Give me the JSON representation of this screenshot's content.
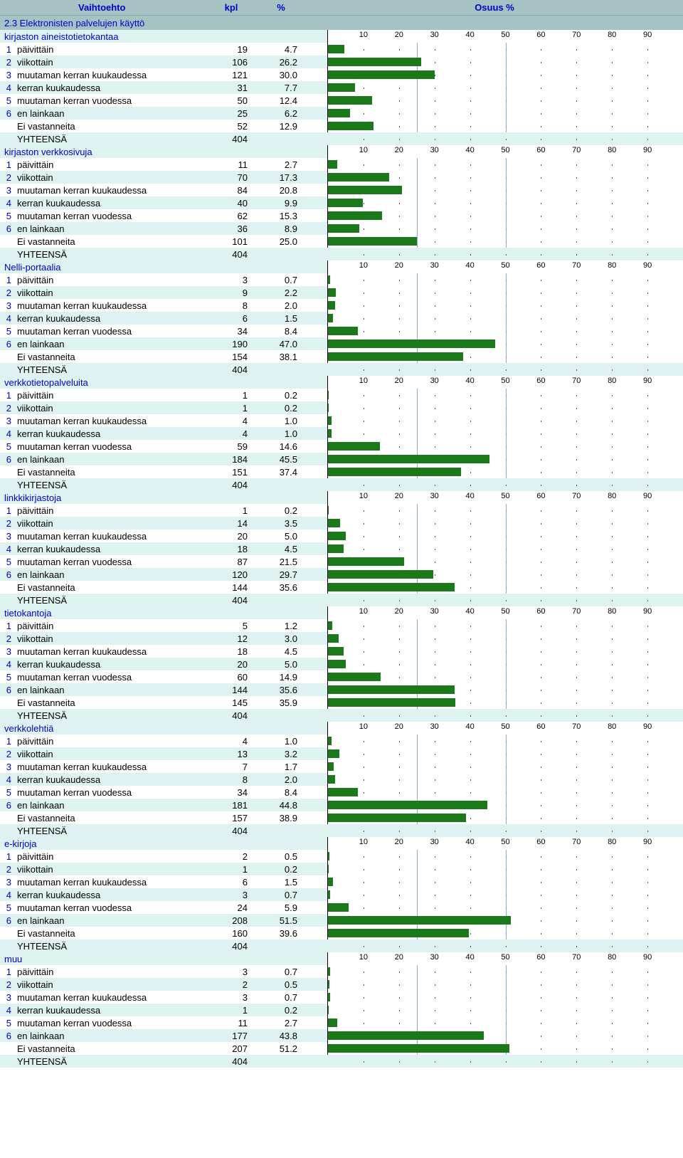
{
  "header": {
    "col_option": "Vaihtoehto",
    "col_count": "kpl",
    "col_percent": "%",
    "col_share": "Osuus %"
  },
  "section_title": "2.3 Elektronisten palvelujen käyttö",
  "chart": {
    "xmax": 100,
    "ticks": [
      10,
      20,
      30,
      40,
      50,
      60,
      70,
      80,
      90
    ],
    "major_gridlines": [
      25,
      50
    ],
    "bar_color": "#1a7a1a",
    "axis_background": "#ffffff",
    "grid_color": "#7aa0bb",
    "axis_font_size": 11
  },
  "row_labels": {
    "1": "päivittäin",
    "2": "viikottain",
    "3": "muutaman kerran kuukaudessa",
    "4": "kerran kuukaudessa",
    "5": "muutaman kerran vuodessa",
    "6": "en lainkaan",
    "nr": "Ei vastanneita",
    "total": "YHTEENSÄ"
  },
  "groups": [
    {
      "title": "kirjaston aineistotietokantaa",
      "rows": [
        {
          "idx": "1",
          "kpl": 19,
          "pct": "4.7"
        },
        {
          "idx": "2",
          "kpl": 106,
          "pct": "26.2"
        },
        {
          "idx": "3",
          "kpl": 121,
          "pct": "30.0"
        },
        {
          "idx": "4",
          "kpl": 31,
          "pct": "7.7"
        },
        {
          "idx": "5",
          "kpl": 50,
          "pct": "12.4"
        },
        {
          "idx": "6",
          "kpl": 25,
          "pct": "6.2"
        },
        {
          "idx": "nr",
          "kpl": 52,
          "pct": "12.9"
        }
      ],
      "total": 404
    },
    {
      "title": "kirjaston verkkosivuja",
      "rows": [
        {
          "idx": "1",
          "kpl": 11,
          "pct": "2.7"
        },
        {
          "idx": "2",
          "kpl": 70,
          "pct": "17.3"
        },
        {
          "idx": "3",
          "kpl": 84,
          "pct": "20.8"
        },
        {
          "idx": "4",
          "kpl": 40,
          "pct": "9.9"
        },
        {
          "idx": "5",
          "kpl": 62,
          "pct": "15.3"
        },
        {
          "idx": "6",
          "kpl": 36,
          "pct": "8.9"
        },
        {
          "idx": "nr",
          "kpl": 101,
          "pct": "25.0"
        }
      ],
      "total": 404
    },
    {
      "title": "Nelli-portaalia",
      "rows": [
        {
          "idx": "1",
          "kpl": 3,
          "pct": "0.7"
        },
        {
          "idx": "2",
          "kpl": 9,
          "pct": "2.2"
        },
        {
          "idx": "3",
          "kpl": 8,
          "pct": "2.0"
        },
        {
          "idx": "4",
          "kpl": 6,
          "pct": "1.5"
        },
        {
          "idx": "5",
          "kpl": 34,
          "pct": "8.4"
        },
        {
          "idx": "6",
          "kpl": 190,
          "pct": "47.0"
        },
        {
          "idx": "nr",
          "kpl": 154,
          "pct": "38.1"
        }
      ],
      "total": 404
    },
    {
      "title": "verkkotietopalveluita",
      "rows": [
        {
          "idx": "1",
          "kpl": 1,
          "pct": "0.2"
        },
        {
          "idx": "2",
          "kpl": 1,
          "pct": "0.2"
        },
        {
          "idx": "3",
          "kpl": 4,
          "pct": "1.0"
        },
        {
          "idx": "4",
          "kpl": 4,
          "pct": "1.0"
        },
        {
          "idx": "5",
          "kpl": 59,
          "pct": "14.6"
        },
        {
          "idx": "6",
          "kpl": 184,
          "pct": "45.5"
        },
        {
          "idx": "nr",
          "kpl": 151,
          "pct": "37.4"
        }
      ],
      "total": 404
    },
    {
      "title": "linkkikirjastoja",
      "rows": [
        {
          "idx": "1",
          "kpl": 1,
          "pct": "0.2"
        },
        {
          "idx": "2",
          "kpl": 14,
          "pct": "3.5"
        },
        {
          "idx": "3",
          "kpl": 20,
          "pct": "5.0"
        },
        {
          "idx": "4",
          "kpl": 18,
          "pct": "4.5"
        },
        {
          "idx": "5",
          "kpl": 87,
          "pct": "21.5"
        },
        {
          "idx": "6",
          "kpl": 120,
          "pct": "29.7"
        },
        {
          "idx": "nr",
          "kpl": 144,
          "pct": "35.6"
        }
      ],
      "total": 404
    },
    {
      "title": "tietokantoja",
      "rows": [
        {
          "idx": "1",
          "kpl": 5,
          "pct": "1.2"
        },
        {
          "idx": "2",
          "kpl": 12,
          "pct": "3.0"
        },
        {
          "idx": "3",
          "kpl": 18,
          "pct": "4.5"
        },
        {
          "idx": "4",
          "kpl": 20,
          "pct": "5.0"
        },
        {
          "idx": "5",
          "kpl": 60,
          "pct": "14.9"
        },
        {
          "idx": "6",
          "kpl": 144,
          "pct": "35.6"
        },
        {
          "idx": "nr",
          "kpl": 145,
          "pct": "35.9"
        }
      ],
      "total": 404
    },
    {
      "title": "verkkolehtiä",
      "rows": [
        {
          "idx": "1",
          "kpl": 4,
          "pct": "1.0"
        },
        {
          "idx": "2",
          "kpl": 13,
          "pct": "3.2"
        },
        {
          "idx": "3",
          "kpl": 7,
          "pct": "1.7"
        },
        {
          "idx": "4",
          "kpl": 8,
          "pct": "2.0"
        },
        {
          "idx": "5",
          "kpl": 34,
          "pct": "8.4"
        },
        {
          "idx": "6",
          "kpl": 181,
          "pct": "44.8"
        },
        {
          "idx": "nr",
          "kpl": 157,
          "pct": "38.9"
        }
      ],
      "total": 404
    },
    {
      "title": "e-kirjoja",
      "rows": [
        {
          "idx": "1",
          "kpl": 2,
          "pct": "0.5"
        },
        {
          "idx": "2",
          "kpl": 1,
          "pct": "0.2"
        },
        {
          "idx": "3",
          "kpl": 6,
          "pct": "1.5"
        },
        {
          "idx": "4",
          "kpl": 3,
          "pct": "0.7"
        },
        {
          "idx": "5",
          "kpl": 24,
          "pct": "5.9"
        },
        {
          "idx": "6",
          "kpl": 208,
          "pct": "51.5"
        },
        {
          "idx": "nr",
          "kpl": 160,
          "pct": "39.6"
        }
      ],
      "total": 404
    },
    {
      "title": "muu",
      "rows": [
        {
          "idx": "1",
          "kpl": 3,
          "pct": "0.7"
        },
        {
          "idx": "2",
          "kpl": 2,
          "pct": "0.5"
        },
        {
          "idx": "3",
          "kpl": 3,
          "pct": "0.7"
        },
        {
          "idx": "4",
          "kpl": 1,
          "pct": "0.2"
        },
        {
          "idx": "5",
          "kpl": 11,
          "pct": "2.7"
        },
        {
          "idx": "6",
          "kpl": 177,
          "pct": "43.8"
        },
        {
          "idx": "nr",
          "kpl": 207,
          "pct": "51.2"
        }
      ],
      "total": 404
    }
  ]
}
